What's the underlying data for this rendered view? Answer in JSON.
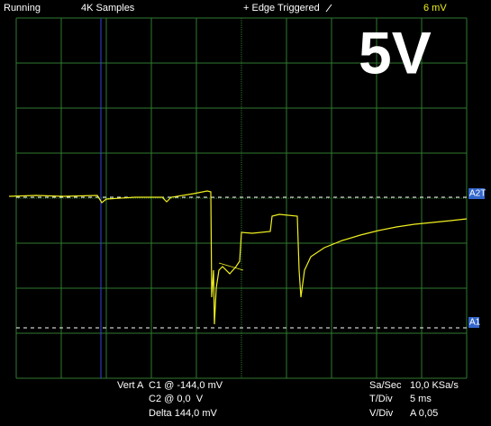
{
  "status_bar": {
    "state": "Running",
    "samples": "4K Samples",
    "trigger": "+ Edge Triggered",
    "trigger_level": "6 mV"
  },
  "overlay_label": "5V",
  "markers": {
    "upper": "A2T",
    "lower": "A1"
  },
  "readout": {
    "vert_channel": "Vert A",
    "c1": "C1 @ -144,0 mV",
    "c2": "C2 @ 0,0  V",
    "delta": "Delta 144,0 mV",
    "rate_label": "Sa/Sec",
    "rate_value": "10,0 KSa/s",
    "tdiv_label": "T/Div",
    "tdiv_value": "5 ms",
    "vdiv_label": "V/Div",
    "vdiv_value": "A 0,05"
  }
}
